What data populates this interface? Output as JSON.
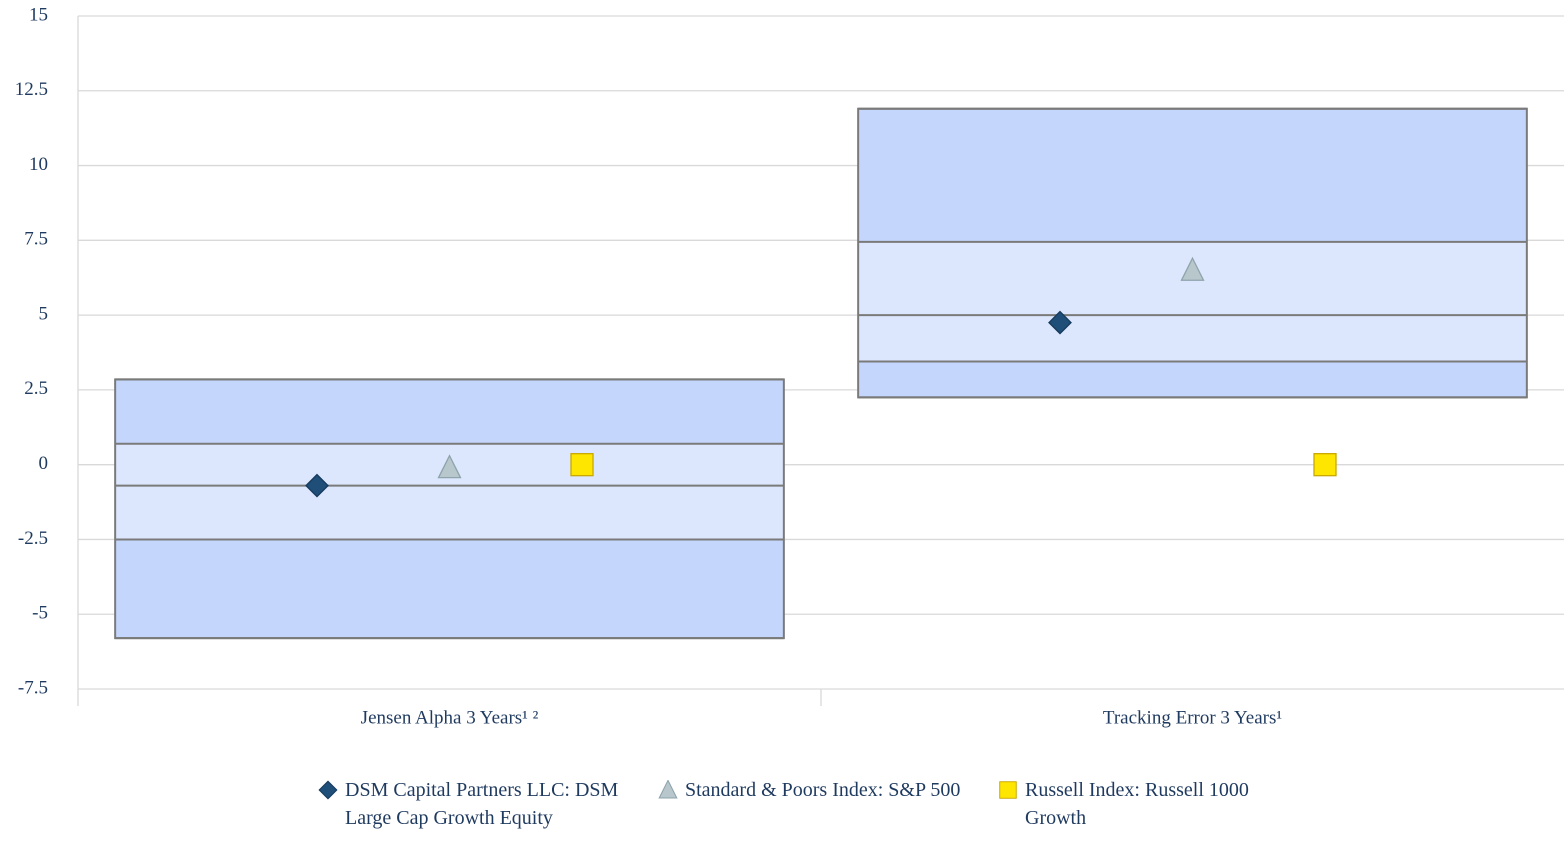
{
  "chart_data": {
    "type": "floating-box",
    "categories": [
      "Jensen Alpha 3 Years¹ ²",
      "Tracking Error 3 Years¹"
    ],
    "boxes": [
      [
        2.85,
        0.7,
        -0.7,
        -2.5,
        -5.8
      ],
      [
        11.9,
        7.45,
        5,
        3.45,
        2.25
      ]
    ],
    "box_colors": [
      "#c5d6fc",
      "#dce6fd"
    ],
    "series": [
      {
        "name": "DSM Capital Partners LLC: DSM Large Cap Growth Equity",
        "color": "#1f4e79",
        "marker": "diamond",
        "values": [
          -0.7,
          4.75
        ]
      },
      {
        "name": "Standard & Poors Index: S&P 500",
        "color": "#b8c7cc",
        "marker": "triangle",
        "values": [
          -0.1,
          6.5
        ]
      },
      {
        "name": "Russell Index: Russell 1000 Growth",
        "color": "#ffe600",
        "marker": "square",
        "values": [
          0,
          0
        ]
      }
    ],
    "ylim": [
      -7.5,
      15
    ],
    "yticks": [
      15,
      12.5,
      10,
      7.5,
      5,
      2.5,
      0,
      -2.5,
      -5,
      -7.5
    ],
    "grid": true
  }
}
